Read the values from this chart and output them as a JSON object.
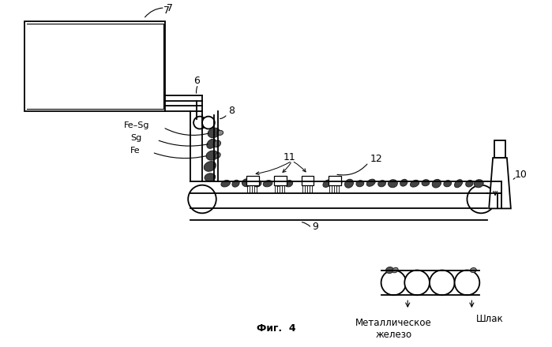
{
  "bg_color": "#ffffff",
  "line_color": "#000000",
  "title": "Фиг.  4",
  "label_7": "7",
  "label_6": "6",
  "label_8": "8",
  "label_9": "9",
  "label_10": "10",
  "label_11": "11",
  "label_12": "12",
  "label_fe_sg": "Fe–Sg",
  "label_sg": "Sg",
  "label_fe": "Fe",
  "label_met_iron": "Металлическое\nжелезо",
  "label_slag": "Шлак"
}
